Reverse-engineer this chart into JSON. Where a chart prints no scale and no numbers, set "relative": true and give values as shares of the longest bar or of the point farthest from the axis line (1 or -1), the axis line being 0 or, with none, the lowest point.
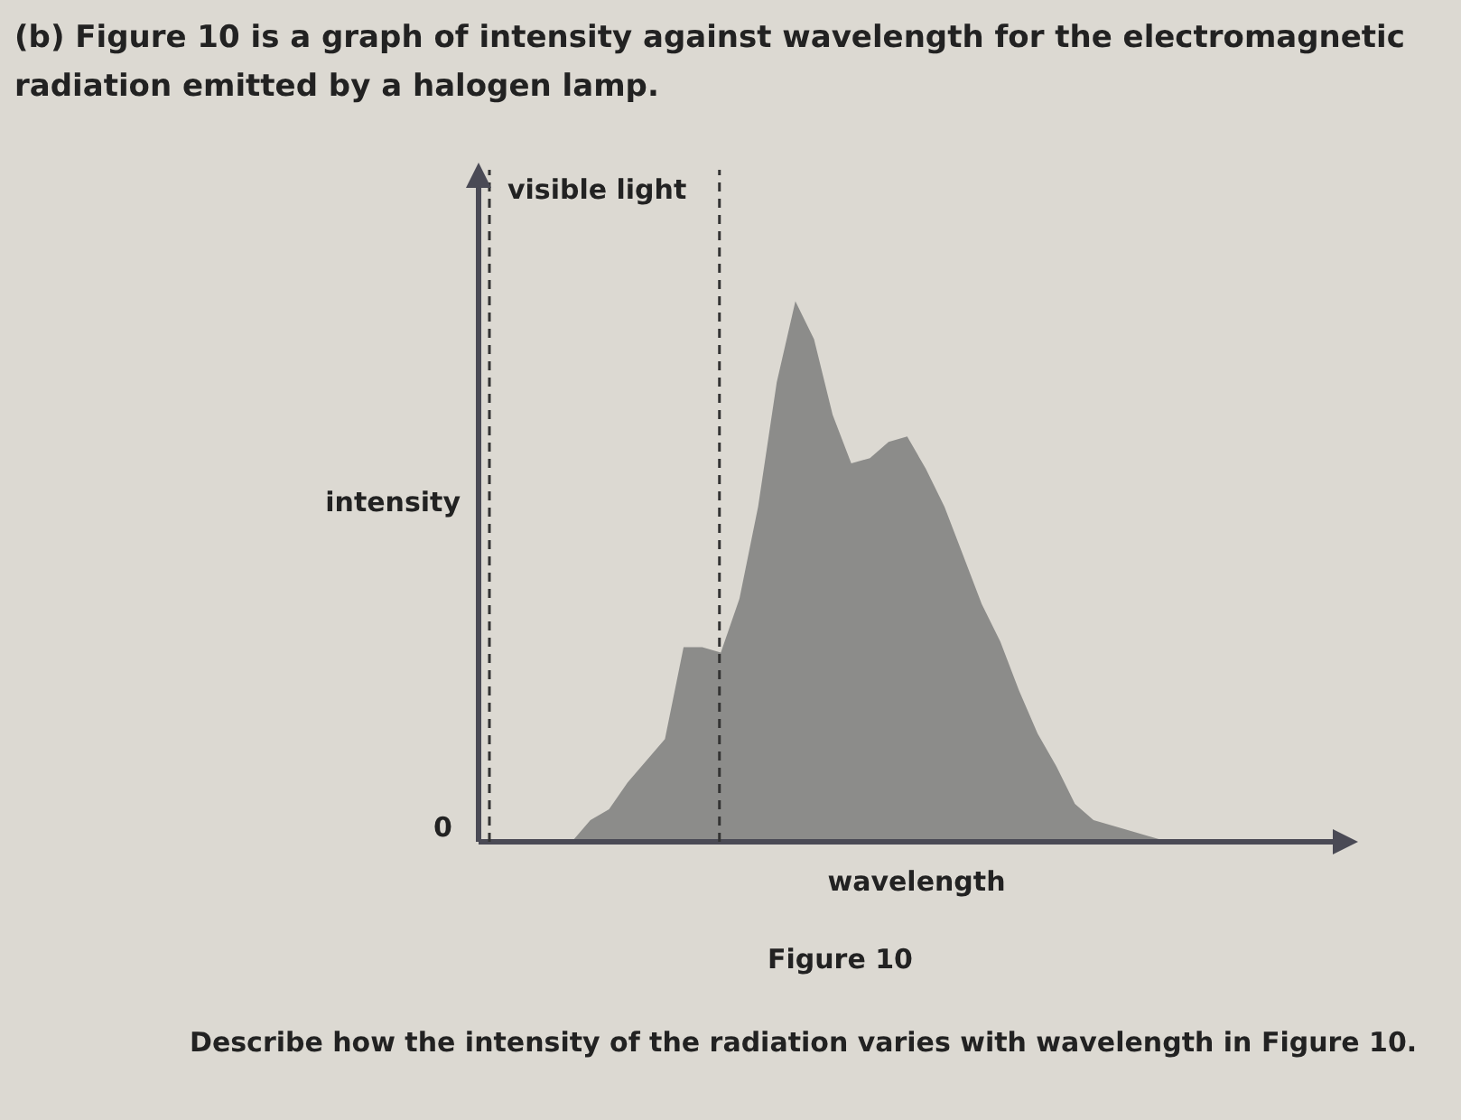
{
  "chart_data": {
    "type": "area",
    "title": "(b) Figure 10 is a graph of intensity against wavelength for the electromagnetic radiation emitted by a halogen lamp.",
    "xlabel": "wavelength",
    "ylabel": "intensity",
    "relative": true,
    "tick_labels": false,
    "grid": false,
    "legend": false,
    "marker": "none",
    "categories": [
      null,
      null,
      null,
      null,
      null,
      null,
      null,
      null,
      null,
      null,
      null,
      null,
      null,
      null,
      null,
      null,
      null,
      null,
      null,
      null,
      null,
      null,
      null,
      null,
      null,
      null,
      null,
      null,
      null,
      null,
      null,
      null,
      null,
      null,
      null,
      null,
      null,
      null,
      null,
      null,
      null,
      null,
      null,
      null,
      null,
      null,
      null,
      null
    ],
    "series": [
      {
        "color": "#8c8c8a",
        "values": [
          0,
          0,
          0,
          0,
          0,
          0,
          0.04,
          0.06,
          0.11,
          0.15,
          0.19,
          0.36,
          0.36,
          0.35,
          0.45,
          0.62,
          0.85,
          1,
          0.93,
          0.79,
          0.7,
          0.71,
          0.74,
          0.75,
          0.69,
          0.62,
          0.53,
          0.44,
          0.37,
          0.28,
          0.2,
          0.14,
          0.07,
          0.04,
          0.03,
          0.02,
          0.01,
          0,
          0,
          0,
          0,
          0,
          0,
          0,
          0,
          0,
          0,
          0
        ]
      }
    ],
    "annotations": [
      "0",
      "visible light",
      "Figure 10",
      "Describe how the intensity of the radiation varies with wavelength in Figure 10."
    ]
  }
}
